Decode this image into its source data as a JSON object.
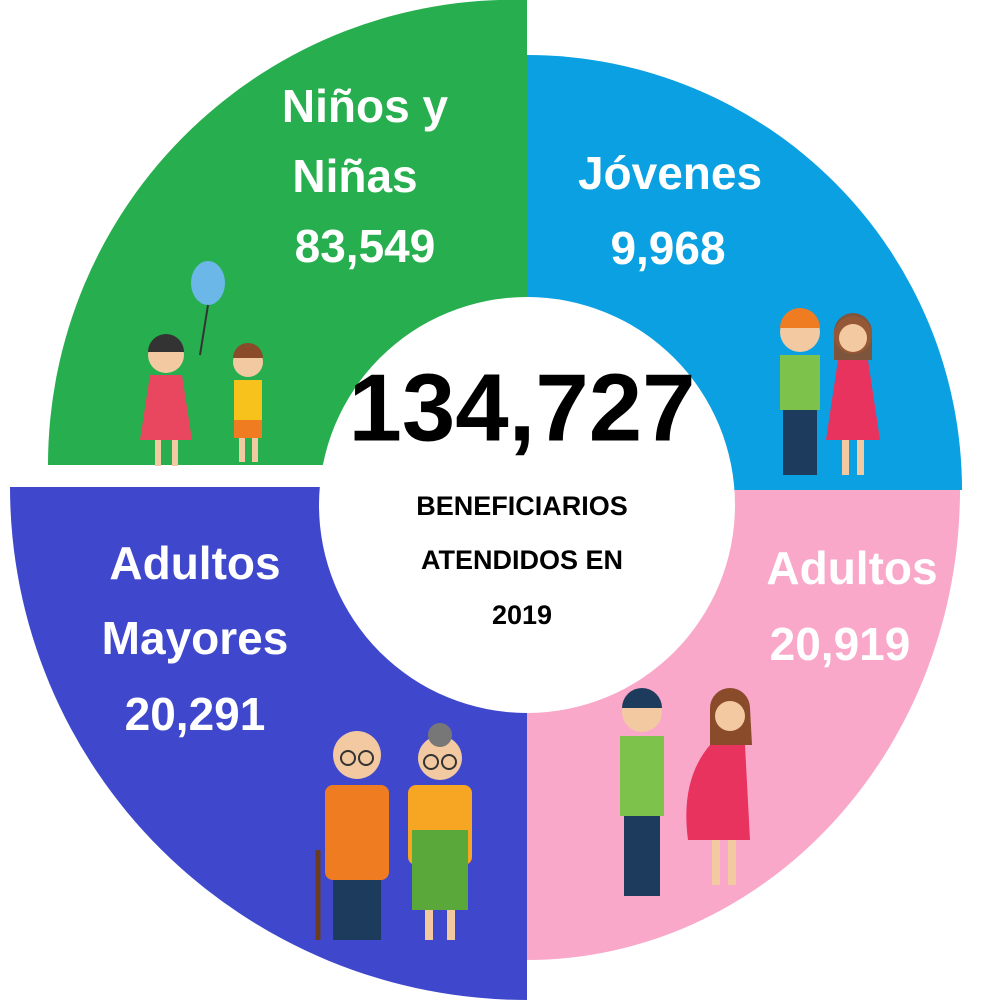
{
  "quadrants": [
    {
      "label": [
        "Niños y",
        "Niñas"
      ],
      "value": "83,549"
    },
    {
      "label": [
        "Jóvenes"
      ],
      "value": "9,968"
    },
    {
      "label": [
        "Adultos"
      ],
      "value": "20,919"
    },
    {
      "label": [
        "Adultos",
        "Mayores"
      ],
      "value": "20,291"
    }
  ],
  "center": {
    "value": "134,727",
    "caption": [
      "BENEFICIARIOS",
      "ATENDIDOS EN",
      "2019"
    ]
  }
}
